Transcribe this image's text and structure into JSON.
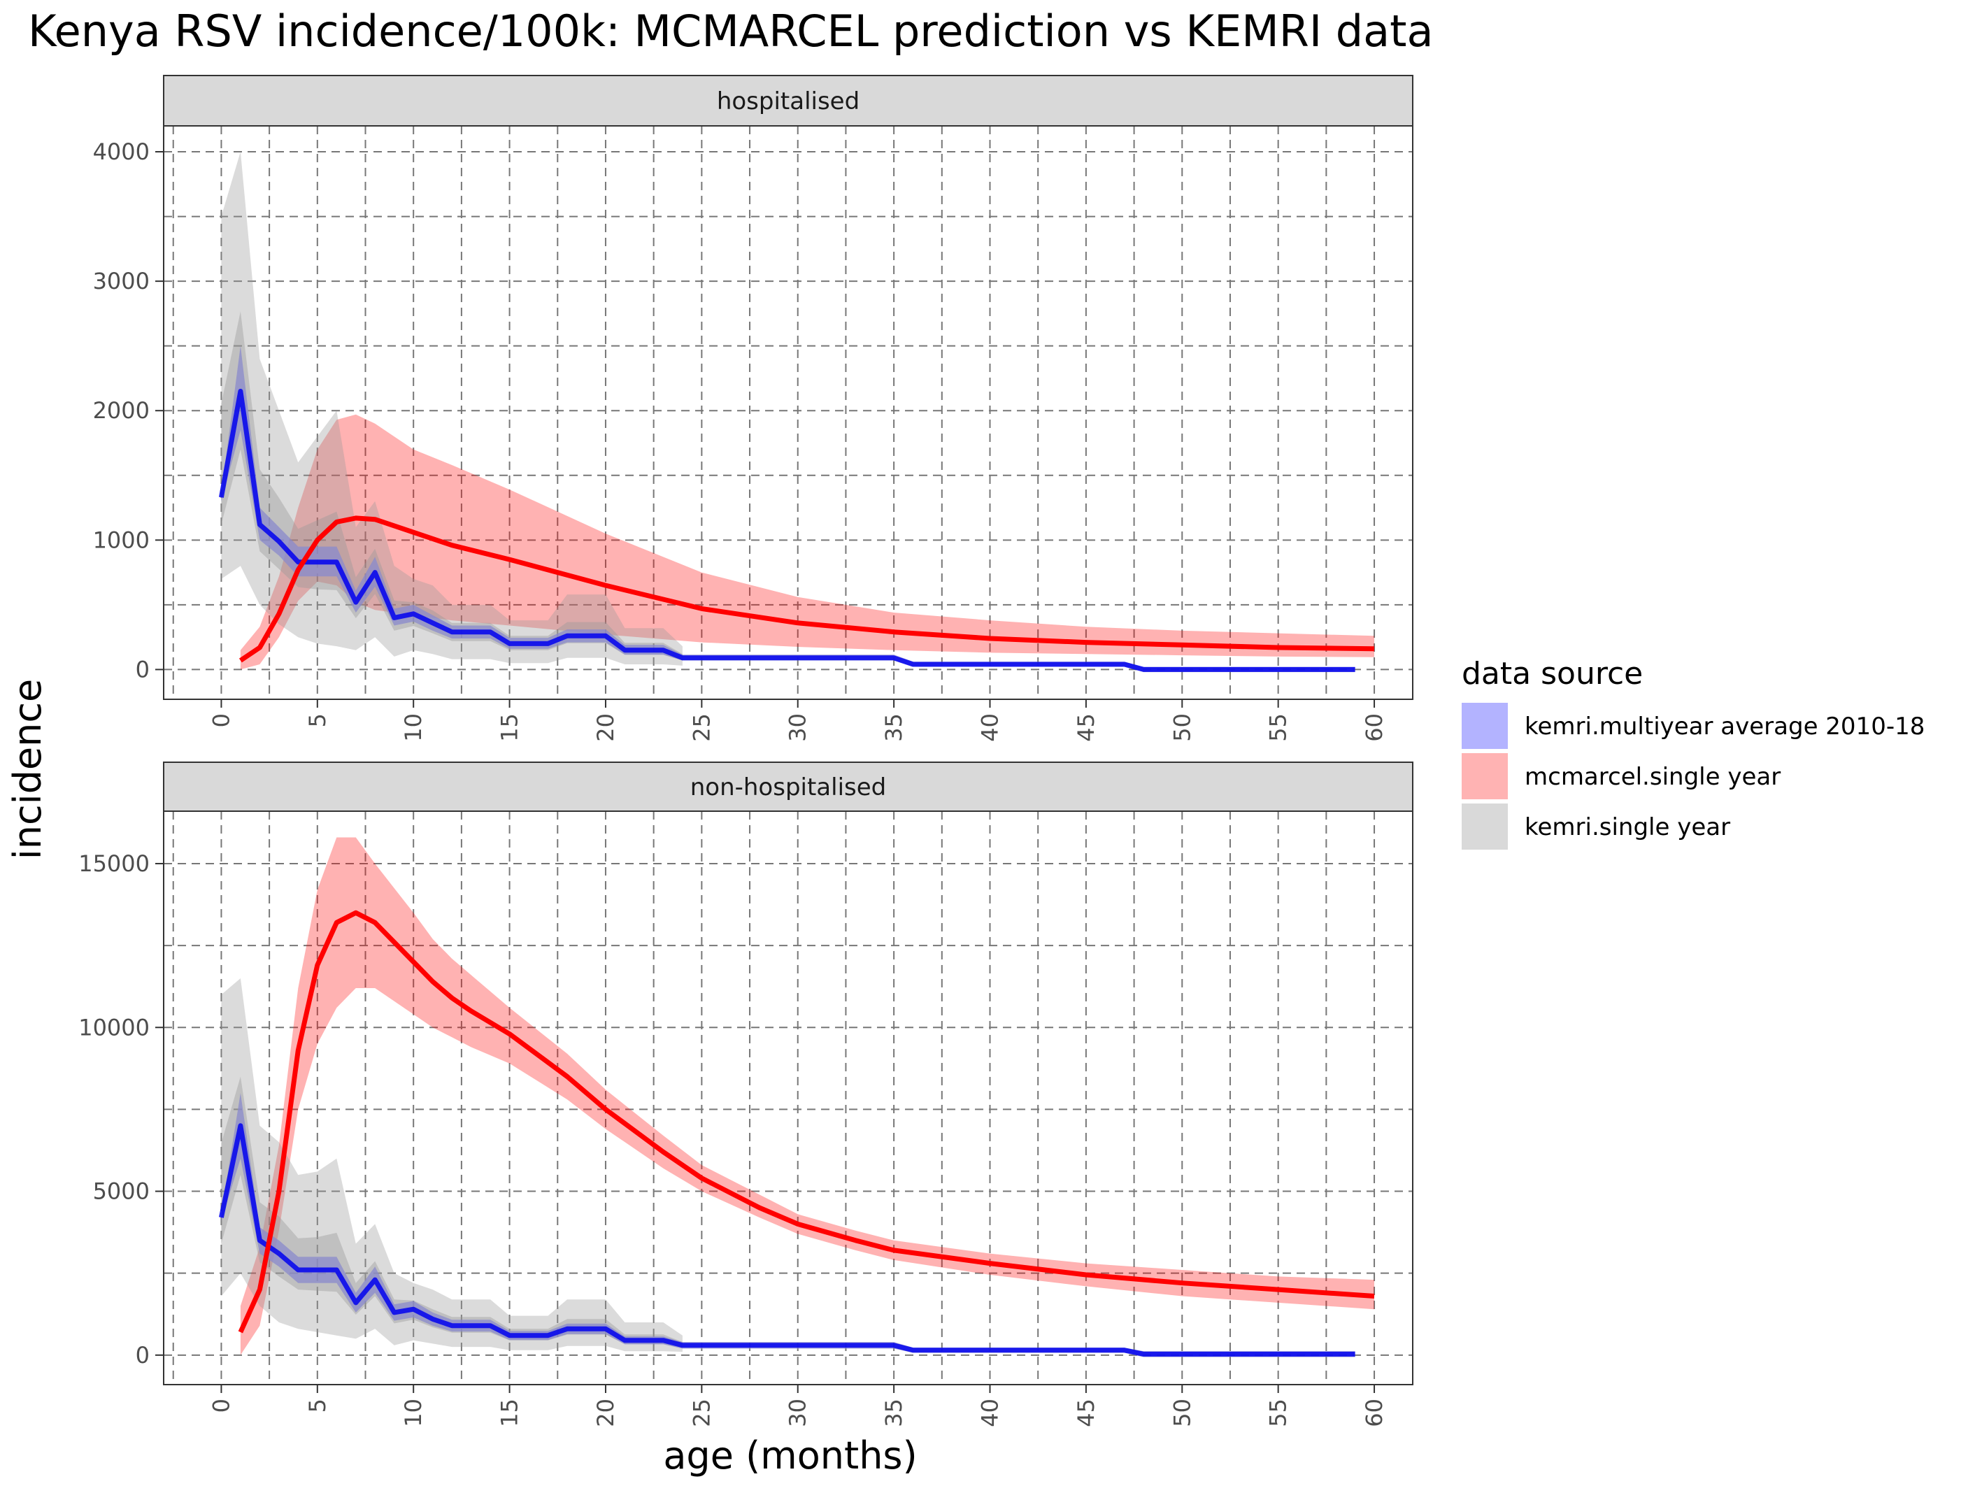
{
  "chart_data": {
    "type": "area",
    "title": "Kenya RSV incidence/100k: MCMARCEL prediction vs KEMRI data",
    "xlabel": "age (months)",
    "ylabel": "incidence",
    "x_ticks": [
      0,
      5,
      10,
      15,
      20,
      25,
      30,
      35,
      40,
      45,
      50,
      55,
      60
    ],
    "x_range": [
      -3,
      62
    ],
    "grid": true,
    "legend": {
      "title": "data source",
      "position": "right",
      "items": [
        {
          "label": "kemri.multiyear average 2010-18",
          "color": "#b3b3ff"
        },
        {
          "label": "mcmarcel.single year",
          "color": "#ffb3b3"
        },
        {
          "label": "kemri.single year",
          "color": "#d9d9d9"
        }
      ]
    },
    "colors": {
      "kemri_line": "#0000ee",
      "mcmarcel_line": "#ff0000",
      "mcmarcel_band": "#ff0000",
      "kemri_band": "#8a8acc",
      "kemri_single_band": "#999999"
    },
    "panels": [
      {
        "strip": "hospitalised",
        "y_ticks": [
          0,
          1000,
          2000,
          3000,
          4000
        ],
        "y_range": [
          -230,
          4200
        ],
        "mcmarcel": {
          "x": [
            1,
            2,
            3,
            4,
            5,
            6,
            7,
            8,
            10,
            12,
            15,
            20,
            25,
            30,
            35,
            40,
            45,
            50,
            55,
            60
          ],
          "mean": [
            70,
            170,
            430,
            770,
            1000,
            1140,
            1170,
            1160,
            1060,
            960,
            850,
            650,
            470,
            360,
            290,
            240,
            210,
            190,
            170,
            160
          ],
          "lower": [
            0,
            40,
            250,
            530,
            680,
            650,
            520,
            460,
            420,
            380,
            340,
            270,
            210,
            175,
            150,
            130,
            120,
            110,
            100,
            95
          ],
          "upper": [
            150,
            330,
            720,
            1250,
            1700,
            1930,
            1970,
            1900,
            1700,
            1580,
            1390,
            1050,
            750,
            560,
            440,
            380,
            330,
            300,
            280,
            260
          ]
        },
        "kemri_avg": {
          "x": [
            0,
            1,
            2,
            3,
            4,
            5,
            6,
            7,
            8,
            9,
            10,
            11,
            12,
            13,
            14,
            15,
            16,
            17,
            18,
            19,
            20,
            21,
            22,
            23,
            24,
            25,
            30,
            35,
            36,
            40,
            45,
            47,
            48,
            50,
            55,
            59
          ],
          "mean": [
            1330,
            2150,
            1120,
            990,
            830,
            830,
            830,
            520,
            750,
            400,
            430,
            360,
            290,
            290,
            290,
            200,
            200,
            200,
            260,
            260,
            260,
            150,
            150,
            150,
            90,
            90,
            90,
            90,
            40,
            40,
            40,
            40,
            0,
            0,
            0,
            0
          ],
          "lower": [
            1300,
            1850,
            1000,
            880,
            720,
            720,
            720,
            440,
            640,
            340,
            370,
            300,
            240,
            240,
            240,
            160,
            160,
            160,
            210,
            210,
            210,
            115,
            115,
            115,
            70,
            70,
            70,
            70,
            25,
            25,
            25,
            25,
            -20,
            -20,
            -20,
            -20
          ],
          "upper": [
            1360,
            2500,
            1250,
            1100,
            950,
            950,
            950,
            610,
            870,
            470,
            500,
            420,
            340,
            340,
            340,
            245,
            245,
            245,
            310,
            310,
            310,
            190,
            190,
            190,
            115,
            115,
            115,
            115,
            60,
            60,
            60,
            60,
            20,
            20,
            20,
            20
          ]
        },
        "kemri_single": {
          "x": [
            0,
            1,
            2,
            3,
            4,
            5,
            6,
            7,
            8,
            9,
            10,
            11,
            12,
            13,
            14,
            15,
            16,
            17,
            18,
            19,
            20,
            21,
            22,
            23,
            24
          ],
          "lower": [
            700,
            800,
            500,
            350,
            250,
            200,
            180,
            150,
            250,
            100,
            150,
            120,
            80,
            80,
            80,
            50,
            50,
            50,
            90,
            90,
            90,
            40,
            40,
            40,
            30
          ],
          "upper": [
            3500,
            4000,
            2400,
            2000,
            1600,
            1800,
            2000,
            1100,
            1300,
            800,
            700,
            650,
            500,
            500,
            500,
            380,
            380,
            380,
            580,
            580,
            580,
            320,
            320,
            320,
            180
          ]
        }
      },
      {
        "strip": "non-hospitalised",
        "y_ticks": [
          0,
          5000,
          10000,
          15000
        ],
        "y_range": [
          -900,
          16600
        ],
        "mcmarcel": {
          "x": [
            1,
            2,
            3,
            4,
            5,
            6,
            7,
            8,
            10,
            11,
            12,
            13,
            15,
            18,
            20,
            23,
            25,
            28,
            30,
            33,
            35,
            40,
            45,
            50,
            55,
            60
          ],
          "mean": [
            700,
            2000,
            5000,
            9300,
            11900,
            13200,
            13500,
            13200,
            12000,
            11400,
            10900,
            10500,
            9800,
            8500,
            7500,
            6200,
            5400,
            4500,
            4000,
            3500,
            3200,
            2800,
            2450,
            2200,
            2000,
            1800
          ],
          "lower": [
            0,
            900,
            3800,
            7500,
            9500,
            10600,
            11200,
            11200,
            10400,
            10000,
            9700,
            9400,
            8900,
            7800,
            6900,
            5700,
            5000,
            4200,
            3700,
            3200,
            2900,
            2450,
            2100,
            1800,
            1600,
            1400
          ],
          "upper": [
            1500,
            3300,
            6400,
            11200,
            14200,
            15800,
            15800,
            15000,
            13500,
            12700,
            12100,
            11600,
            10600,
            9200,
            8100,
            6700,
            5800,
            4900,
            4300,
            3800,
            3500,
            3100,
            2800,
            2600,
            2400,
            2300
          ]
        },
        "kemri_avg": {
          "x": [
            0,
            1,
            2,
            3,
            4,
            5,
            6,
            7,
            8,
            9,
            10,
            11,
            12,
            13,
            14,
            15,
            16,
            17,
            18,
            19,
            20,
            21,
            22,
            23,
            24,
            25,
            30,
            35,
            36,
            40,
            45,
            47,
            48,
            50,
            55,
            59
          ],
          "mean": [
            4200,
            7000,
            3500,
            3100,
            2600,
            2600,
            2600,
            1600,
            2300,
            1300,
            1400,
            1100,
            900,
            900,
            900,
            600,
            600,
            600,
            800,
            800,
            800,
            450,
            450,
            450,
            300,
            300,
            300,
            300,
            150,
            150,
            150,
            150,
            30,
            30,
            30,
            30
          ],
          "lower": [
            4100,
            6000,
            3100,
            2700,
            2200,
            2200,
            2200,
            1300,
            1900,
            1050,
            1150,
            900,
            720,
            720,
            720,
            460,
            460,
            460,
            640,
            640,
            640,
            330,
            330,
            330,
            200,
            200,
            200,
            200,
            70,
            70,
            70,
            70,
            -60,
            -60,
            -60,
            -60
          ],
          "upper": [
            4300,
            8000,
            3900,
            3500,
            3000,
            3000,
            3000,
            1900,
            2700,
            1550,
            1650,
            1300,
            1080,
            1080,
            1080,
            740,
            740,
            740,
            960,
            960,
            960,
            570,
            570,
            570,
            400,
            400,
            400,
            400,
            230,
            230,
            230,
            230,
            120,
            120,
            120,
            120
          ]
        },
        "kemri_single": {
          "x": [
            0,
            1,
            2,
            3,
            4,
            5,
            6,
            7,
            8,
            9,
            10,
            11,
            12,
            13,
            14,
            15,
            16,
            17,
            18,
            19,
            20,
            21,
            22,
            23,
            24
          ],
          "lower": [
            1800,
            2500,
            1500,
            1000,
            800,
            700,
            600,
            500,
            800,
            300,
            450,
            350,
            250,
            250,
            250,
            150,
            150,
            150,
            280,
            280,
            280,
            120,
            120,
            120,
            100
          ],
          "upper": [
            11000,
            11500,
            7000,
            6500,
            5500,
            5600,
            6000,
            3400,
            4000,
            2500,
            2200,
            2000,
            1700,
            1700,
            1700,
            1200,
            1200,
            1200,
            1700,
            1700,
            1700,
            1000,
            1000,
            1000,
            600
          ]
        }
      }
    ]
  }
}
